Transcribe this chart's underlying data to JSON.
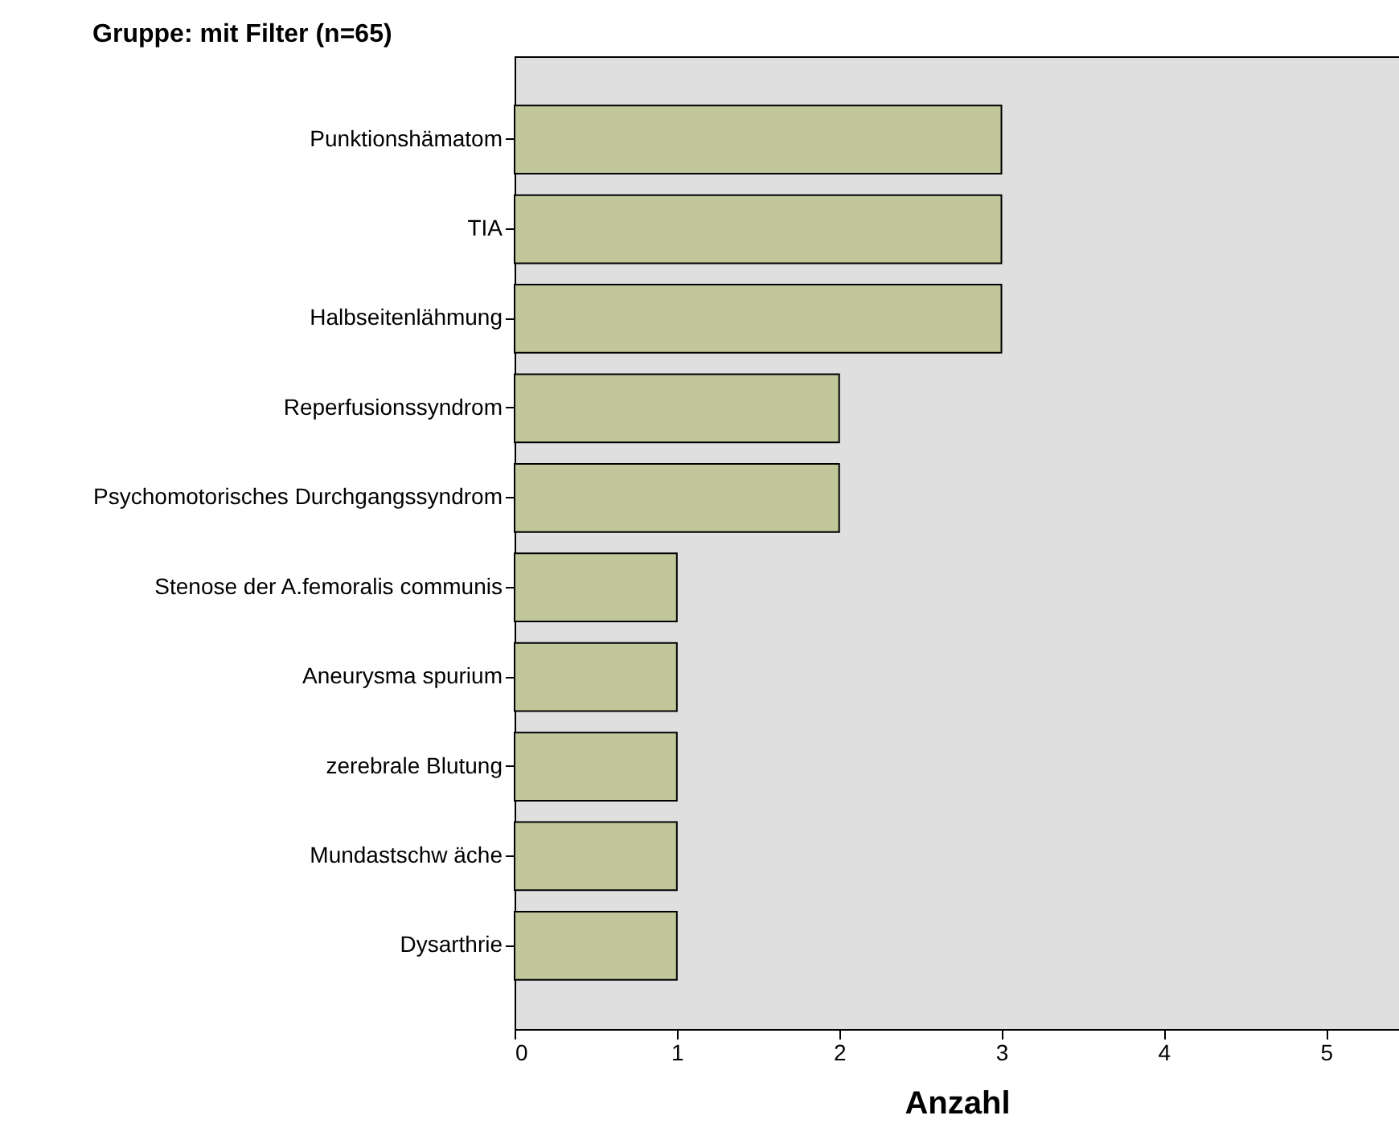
{
  "chart_data": {
    "type": "bar",
    "orientation": "horizontal",
    "title": "Gruppe: mit Filter (n=65)",
    "xlabel": "Anzahl",
    "categories": [
      "Punktionshämatom",
      "TIA",
      "Halbseitenlähmung",
      "Reperfusionssyndrom",
      "Psychomotorisches Durchgangssyndrom",
      "Stenose der A.femoralis communis",
      "Aneurysma spurium",
      "zerebrale Blutung",
      "Mundastschw äche",
      "Dysarthrie"
    ],
    "values": [
      3,
      3,
      3,
      2,
      2,
      1,
      1,
      1,
      1,
      1
    ],
    "color": "#c2c69b",
    "xlim": [
      0,
      5.45
    ],
    "xticks": [
      0,
      1,
      2,
      3,
      4,
      5
    ],
    "grid": false
  }
}
